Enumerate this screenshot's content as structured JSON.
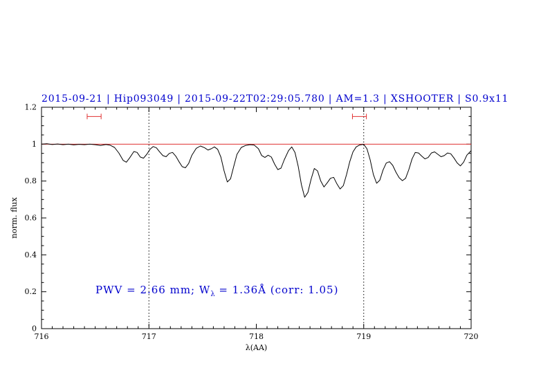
{
  "chart_data": {
    "type": "line",
    "title": "2015-09-21 | Hip093049 | 2015-09-22T02:29:05.780 | AM=1.3 | XSHOOTER | S0.9x11",
    "title_color": "#0000cd",
    "xlabel": "λ(AA)",
    "ylabel": "norm. flux",
    "xlim": [
      716,
      720
    ],
    "ylim": [
      0,
      1.2
    ],
    "xticks": [
      716,
      717,
      718,
      719,
      720
    ],
    "xtick_labels": [
      "716",
      "717",
      "718",
      "719",
      "720"
    ],
    "x_minor_step": 0.1,
    "yticks": [
      0,
      0.2,
      0.4,
      0.6,
      0.8,
      1,
      1.2
    ],
    "ytick_labels": [
      "0",
      "0.2",
      "0.4",
      "0.6",
      "0.8",
      "1",
      "1.2"
    ],
    "y_minor_step": 0.05,
    "grid": "off",
    "legend": "none",
    "continuum_line": {
      "y": 1.0,
      "color": "#e03030"
    },
    "dotted_vlines": {
      "x": [
        717,
        719
      ],
      "color": "#000000"
    },
    "range_markers": {
      "y": 1.15,
      "half_width": 0.065,
      "centers": [
        716.49,
        718.96
      ],
      "color": "#e03030"
    },
    "annotation": {
      "prefix": "PWV = 2.66 mm; W",
      "subscript": "λ",
      "suffix": " = 1.36Å (corr: 1.05)",
      "color": "#0000cd"
    },
    "series": [
      {
        "name": "normalized-flux-spectrum",
        "color": "#000000",
        "points": [
          [
            716.0,
            1.0
          ],
          [
            716.05,
            1.002
          ],
          [
            716.1,
            0.998
          ],
          [
            716.15,
            1.001
          ],
          [
            716.2,
            0.997
          ],
          [
            716.25,
            1.0
          ],
          [
            716.3,
            0.996
          ],
          [
            716.35,
            0.999
          ],
          [
            716.4,
            0.997
          ],
          [
            716.45,
            1.0
          ],
          [
            716.5,
            0.997
          ],
          [
            716.55,
            0.993
          ],
          [
            716.6,
            0.998
          ],
          [
            716.64,
            0.994
          ],
          [
            716.68,
            0.982
          ],
          [
            716.72,
            0.952
          ],
          [
            716.76,
            0.912
          ],
          [
            716.79,
            0.902
          ],
          [
            716.82,
            0.925
          ],
          [
            716.86,
            0.96
          ],
          [
            716.89,
            0.955
          ],
          [
            716.92,
            0.93
          ],
          [
            716.95,
            0.924
          ],
          [
            716.98,
            0.945
          ],
          [
            717.01,
            0.972
          ],
          [
            717.04,
            0.987
          ],
          [
            717.07,
            0.98
          ],
          [
            717.1,
            0.958
          ],
          [
            717.13,
            0.938
          ],
          [
            717.16,
            0.932
          ],
          [
            717.19,
            0.95
          ],
          [
            717.22,
            0.955
          ],
          [
            717.25,
            0.935
          ],
          [
            717.28,
            0.905
          ],
          [
            717.31,
            0.878
          ],
          [
            717.34,
            0.872
          ],
          [
            717.37,
            0.895
          ],
          [
            717.4,
            0.94
          ],
          [
            717.44,
            0.977
          ],
          [
            717.48,
            0.99
          ],
          [
            717.52,
            0.98
          ],
          [
            717.55,
            0.968
          ],
          [
            717.58,
            0.975
          ],
          [
            717.61,
            0.985
          ],
          [
            717.64,
            0.972
          ],
          [
            717.67,
            0.93
          ],
          [
            717.7,
            0.855
          ],
          [
            717.73,
            0.795
          ],
          [
            717.76,
            0.812
          ],
          [
            717.79,
            0.88
          ],
          [
            717.82,
            0.945
          ],
          [
            717.86,
            0.982
          ],
          [
            717.9,
            0.993
          ],
          [
            717.94,
            0.997
          ],
          [
            717.98,
            0.995
          ],
          [
            718.02,
            0.975
          ],
          [
            718.05,
            0.938
          ],
          [
            718.08,
            0.928
          ],
          [
            718.11,
            0.94
          ],
          [
            718.14,
            0.93
          ],
          [
            718.17,
            0.892
          ],
          [
            718.2,
            0.862
          ],
          [
            718.23,
            0.87
          ],
          [
            718.26,
            0.915
          ],
          [
            718.3,
            0.965
          ],
          [
            718.33,
            0.985
          ],
          [
            718.36,
            0.955
          ],
          [
            718.39,
            0.88
          ],
          [
            718.42,
            0.78
          ],
          [
            718.45,
            0.712
          ],
          [
            718.48,
            0.738
          ],
          [
            718.51,
            0.81
          ],
          [
            718.54,
            0.868
          ],
          [
            718.57,
            0.855
          ],
          [
            718.6,
            0.8
          ],
          [
            718.63,
            0.768
          ],
          [
            718.66,
            0.79
          ],
          [
            718.69,
            0.815
          ],
          [
            718.72,
            0.82
          ],
          [
            718.75,
            0.785
          ],
          [
            718.78,
            0.757
          ],
          [
            718.81,
            0.775
          ],
          [
            718.84,
            0.835
          ],
          [
            718.87,
            0.905
          ],
          [
            718.9,
            0.958
          ],
          [
            718.93,
            0.985
          ],
          [
            718.96,
            0.995
          ],
          [
            719.0,
            0.999
          ],
          [
            719.03,
            0.975
          ],
          [
            719.06,
            0.915
          ],
          [
            719.09,
            0.835
          ],
          [
            719.12,
            0.788
          ],
          [
            719.15,
            0.805
          ],
          [
            719.18,
            0.86
          ],
          [
            719.21,
            0.898
          ],
          [
            719.24,
            0.905
          ],
          [
            719.27,
            0.885
          ],
          [
            719.3,
            0.848
          ],
          [
            719.33,
            0.818
          ],
          [
            719.36,
            0.802
          ],
          [
            719.39,
            0.815
          ],
          [
            719.42,
            0.862
          ],
          [
            719.45,
            0.92
          ],
          [
            719.48,
            0.955
          ],
          [
            719.51,
            0.952
          ],
          [
            719.54,
            0.935
          ],
          [
            719.57,
            0.92
          ],
          [
            719.6,
            0.928
          ],
          [
            719.63,
            0.952
          ],
          [
            719.66,
            0.958
          ],
          [
            719.69,
            0.945
          ],
          [
            719.72,
            0.932
          ],
          [
            719.75,
            0.938
          ],
          [
            719.78,
            0.952
          ],
          [
            719.81,
            0.948
          ],
          [
            719.84,
            0.925
          ],
          [
            719.87,
            0.898
          ],
          [
            719.9,
            0.882
          ],
          [
            719.93,
            0.902
          ],
          [
            719.96,
            0.94
          ],
          [
            720.0,
            0.965
          ]
        ]
      }
    ]
  }
}
